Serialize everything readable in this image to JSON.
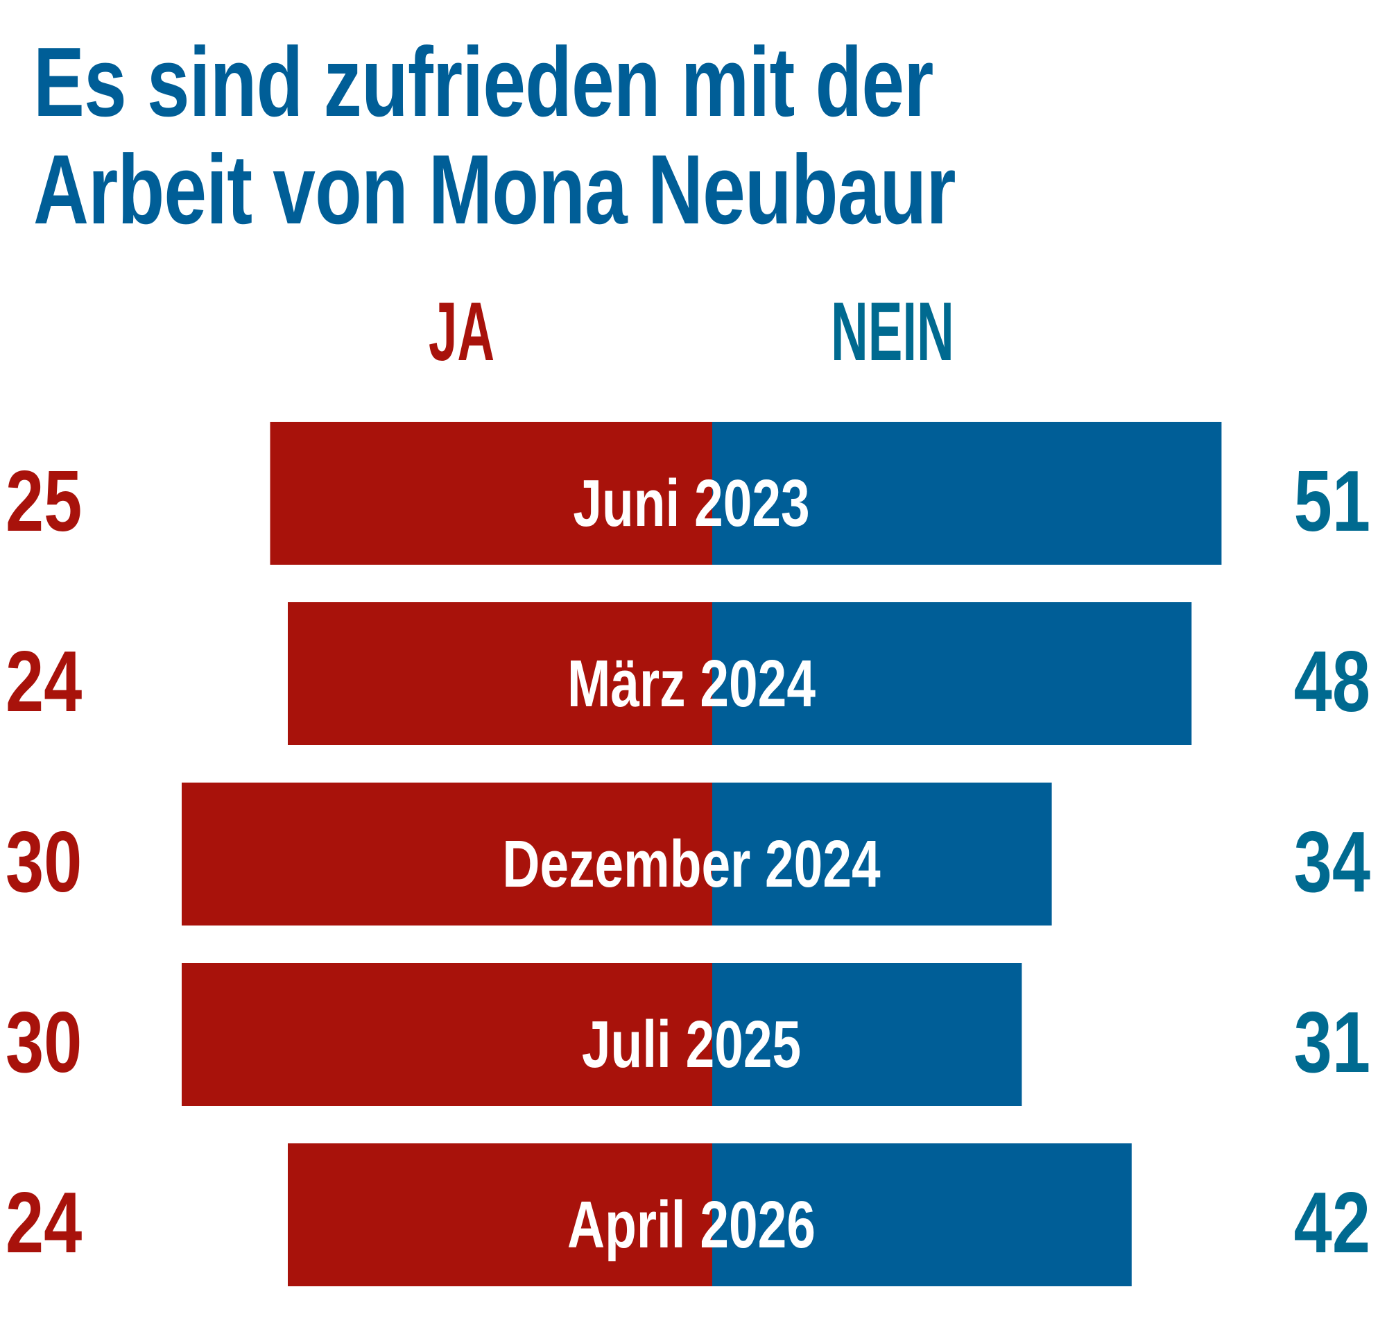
{
  "chart_data": {
    "type": "bar",
    "orientation": "horizontal-diverging",
    "title": "Es sind zufrieden mit der Arbeit von Mona Neubaur",
    "title_lines": [
      "Es sind zufrieden mit der",
      "Arbeit von Mona Neubaur"
    ],
    "legend": {
      "ja": "JA",
      "nein": "NEIN"
    },
    "categories": [
      "Juni 2023",
      "März 2024",
      "Dezember 2024",
      "Juli 2025",
      "April 2026"
    ],
    "series": [
      {
        "name": "JA",
        "values": [
          25,
          24,
          30,
          30,
          24
        ]
      },
      {
        "name": "NEIN",
        "values": [
          51,
          48,
          34,
          31,
          42
        ]
      }
    ],
    "value_labels": {
      "ja": [
        "25",
        "24",
        "30",
        "30",
        "24"
      ],
      "nein": [
        "51",
        "48",
        "34",
        "31",
        "42"
      ]
    },
    "colors": {
      "ja": "#A8120B",
      "nein_bar": "#005E97",
      "nein_text": "#006A90",
      "title": "#005E97"
    },
    "xlabel": "",
    "ylabel": "",
    "grid": false
  }
}
